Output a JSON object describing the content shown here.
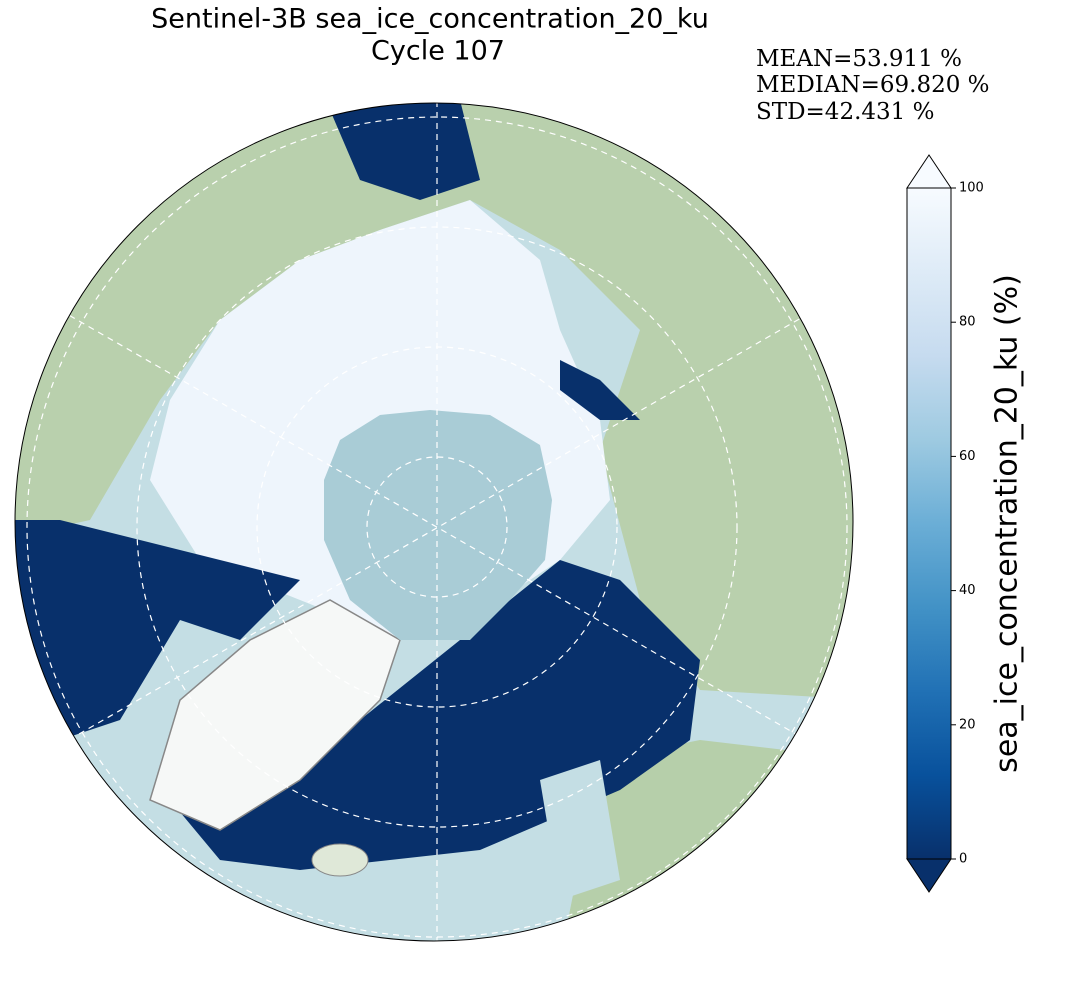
{
  "title": "Sentinel-3B sea_ice_concentration_20_ku",
  "subtitle": "Cycle 107",
  "stats": [
    "MEAN=53.911 %",
    "MEDIAN=69.820 %",
    "STD=42.431 %"
  ],
  "colorbar": {
    "label": "sea_ice_concentration_20_ku (%)",
    "lim": [
      0,
      100
    ],
    "ticks": [
      0,
      20,
      40,
      60,
      80,
      100
    ],
    "colormap": [
      "#08306b",
      "#08519c",
      "#2171b5",
      "#4292c6",
      "#6baed6",
      "#9ecae1",
      "#c6dbef",
      "#deebf7",
      "#f7fbff"
    ],
    "extend": "both"
  }
}
